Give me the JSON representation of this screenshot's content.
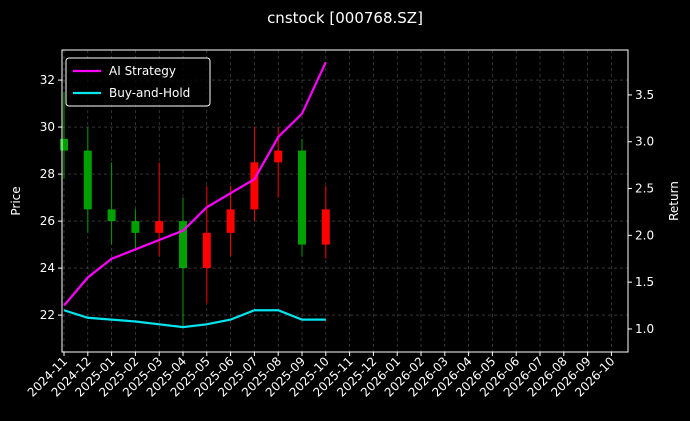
{
  "chart_data": {
    "type": "candlestick",
    "title": "cnstock [000768.SZ]",
    "ylabel": "Price",
    "y2label": "Return",
    "x": [
      "2024-11",
      "2024-12",
      "2025-01",
      "2025-02",
      "2025-03",
      "2025-04",
      "2025-05",
      "2025-06",
      "2025-07",
      "2025-08",
      "2025-09",
      "2025-10"
    ],
    "open": [
      29.5,
      29,
      26.5,
      26,
      25.5,
      26,
      24,
      25.5,
      26.5,
      28.5,
      29,
      25
    ],
    "high": [
      31.5,
      30,
      28.5,
      26.5,
      28.5,
      27,
      27.5,
      27.5,
      30,
      30,
      29.5,
      27.5
    ],
    "low": [
      27.8,
      25.5,
      25,
      24.8,
      24.5,
      21.5,
      22.5,
      24.5,
      26,
      27,
      24.5,
      24.4
    ],
    "close": [
      29,
      26.5,
      26,
      25.5,
      26,
      24,
      25.5,
      26.5,
      28.5,
      29,
      25,
      26.5
    ],
    "up_color": "#ff0000",
    "down_color": "#00a000",
    "series": [
      {
        "name": "AI Strategy",
        "color": "#ff00ff",
        "axis": "y2",
        "values": [
          1.25,
          1.55,
          1.75,
          1.85,
          1.95,
          2.05,
          2.3,
          2.45,
          2.6,
          3.05,
          3.3,
          3.85
        ]
      },
      {
        "name": "Buy-and-Hold",
        "color": "#00e5ee",
        "axis": "y2",
        "values": [
          1.2,
          1.12,
          1.1,
          1.08,
          1.05,
          1.02,
          1.05,
          1.1,
          1.2,
          1.2,
          1.1,
          1.1
        ]
      }
    ],
    "xticks": [
      "2024-11",
      "2024-12",
      "2025-01",
      "2025-02",
      "2025-03",
      "2025-04",
      "2025-05",
      "2025-06",
      "2025-07",
      "2025-08",
      "2025-09",
      "2025-10",
      "2025-11",
      "2025-12",
      "2026-01",
      "2026-02",
      "2026-03",
      "2026-04",
      "2026-05",
      "2026-06",
      "2026-07",
      "2026-08",
      "2026-09",
      "2026-10"
    ],
    "ylim": [
      20.43,
      33.28
    ],
    "yticks": [
      22,
      24,
      26,
      28,
      30,
      32
    ],
    "y2lim": [
      0.754,
      3.98
    ],
    "y2ticks": [
      {
        "value": 1.0,
        "label": "1.0"
      },
      {
        "value": 1.5,
        "label": "1.5"
      },
      {
        "value": 2.0,
        "label": "2.0"
      },
      {
        "value": 2.5,
        "label": "2.5"
      },
      {
        "value": 3.0,
        "label": "3.0"
      },
      {
        "value": 3.5,
        "label": "3.5"
      }
    ],
    "grid": true,
    "legend": "upper left"
  }
}
